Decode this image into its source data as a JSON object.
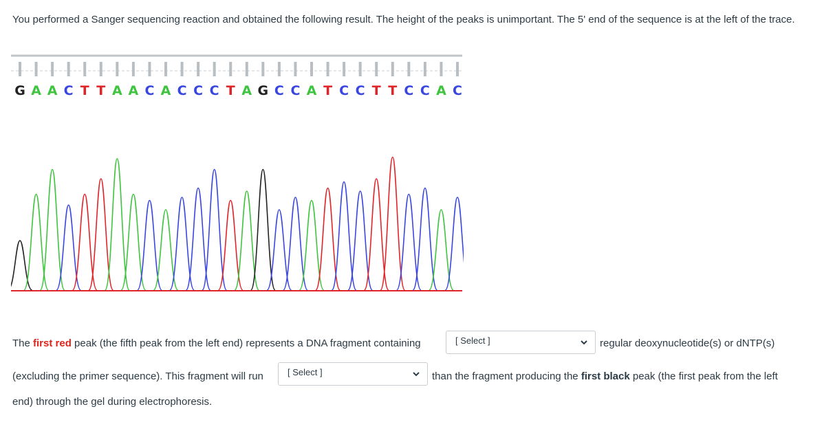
{
  "intro_text": "You performed a Sanger sequencing reaction and obtained the following result. The height of the peaks is unimportant. The 5' end of the sequence is at the left of the trace.",
  "sequence": [
    "G",
    "A",
    "A",
    "C",
    "T",
    "T",
    "A",
    "A",
    "C",
    "A",
    "C",
    "C",
    "C",
    "T",
    "A",
    "G",
    "C",
    "C",
    "A",
    "T",
    "C",
    "C",
    "T",
    "T",
    "C",
    "C",
    "A",
    "C"
  ],
  "base_colors": {
    "G": "#222222",
    "A": "#3ec43e",
    "C": "#3a46e0",
    "T": "#e0242a"
  },
  "question": {
    "line1_before_red": "The ",
    "line1_red": "first red",
    "line1_after_red": " peak (the fifth peak from the left end) represents a DNA fragment containing",
    "line1_after_select": "regular deoxynucleotide(s) or dNTP(s)",
    "line2_before_select": "(excluding the primer sequence). This fragment will run",
    "line2_after_select_before_bold": "than the fragment producing the ",
    "line2_bold": "first black",
    "line2_after_bold": " peak (the first peak from the left",
    "line3": "end) through the gel during electrophoresis."
  },
  "select1": {
    "value": "[ Select ]",
    "icon": "chevron-down-icon"
  },
  "select2": {
    "value": "[ Select ]",
    "icon": "chevron-down-icon"
  }
}
